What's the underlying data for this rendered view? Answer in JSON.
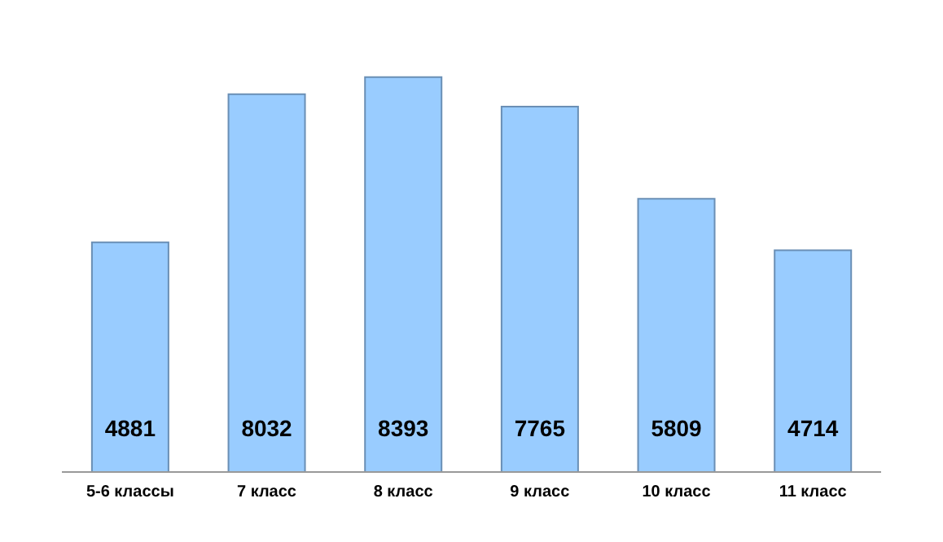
{
  "chart_data": {
    "type": "bar",
    "categories": [
      "5-6 классы",
      "7 класс",
      "8 класс",
      "9 класс",
      "10 класс",
      "11 класс"
    ],
    "values": [
      4881,
      8032,
      8393,
      7765,
      5809,
      4714
    ],
    "color": "#99ccff",
    "data_labels": true,
    "grid": false,
    "legend": false
  }
}
